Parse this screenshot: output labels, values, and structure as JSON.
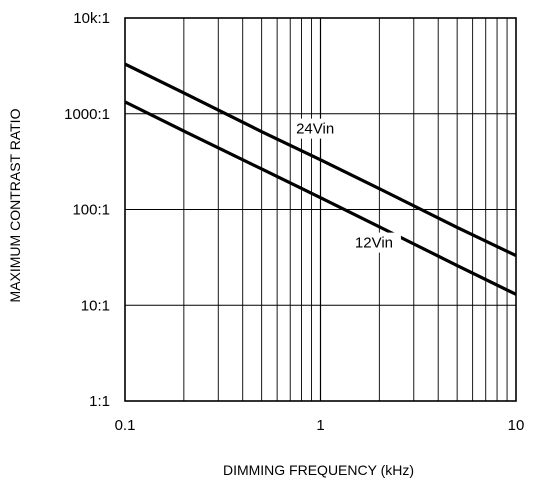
{
  "chart_data": {
    "type": "line",
    "title": "",
    "xlabel": "DIMMING FREQUENCY (kHz)",
    "ylabel": "MAXIMUM CONTRAST RATIO",
    "xscale": "log",
    "yscale": "log",
    "xlim": [
      0.1,
      10
    ],
    "ylim": [
      1,
      10000
    ],
    "grid": true,
    "x_ticks": [
      {
        "value": 0.1,
        "label": "0.1"
      },
      {
        "value": 1,
        "label": "1"
      },
      {
        "value": 10,
        "label": "10"
      }
    ],
    "y_ticks": [
      {
        "value": 1,
        "label": "1:1"
      },
      {
        "value": 10,
        "label": "10:1"
      },
      {
        "value": 100,
        "label": "100:1"
      },
      {
        "value": 1000,
        "label": "1000:1"
      },
      {
        "value": 10000,
        "label": "10k:1"
      }
    ],
    "series": [
      {
        "name": "24Vin",
        "x": [
          0.1,
          0.2,
          0.5,
          1,
          2,
          5,
          10
        ],
        "y": [
          3300,
          1650,
          650,
          330,
          165,
          65,
          33
        ]
      },
      {
        "name": "12Vin",
        "x": [
          0.1,
          0.2,
          0.5,
          1,
          2,
          5,
          10
        ],
        "y": [
          1330,
          660,
          265,
          133,
          66,
          26,
          13
        ]
      }
    ],
    "annotations": [
      {
        "text": "24Vin",
        "series": "24Vin",
        "x": 0.75,
        "y": 620
      },
      {
        "text": "12Vin",
        "series": "12Vin",
        "x": 1.5,
        "y": 40
      }
    ]
  }
}
